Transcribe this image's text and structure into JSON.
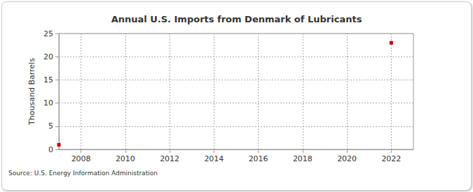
{
  "chart_data": {
    "type": "line",
    "title": "Annual U.S. Imports from Denmark of Lubricants",
    "y_label": "Thousand Barrels",
    "annotation": "Source: U.S. Energy Information Administration",
    "x": [
      2007,
      2008,
      2009,
      2010,
      2011,
      2012,
      2013,
      2014,
      2015,
      2016,
      2017,
      2018,
      2019,
      2020,
      2021,
      2022
    ],
    "values": [
      1,
      null,
      null,
      null,
      null,
      null,
      null,
      null,
      null,
      null,
      null,
      null,
      null,
      null,
      null,
      23
    ],
    "color": "#cc0000",
    "marker": "square",
    "xlim": [
      2007,
      2023
    ],
    "xticks": [
      2008,
      2010,
      2012,
      2014,
      2016,
      2018,
      2020,
      2022
    ],
    "ylim": [
      0,
      25
    ],
    "yticks": [
      0,
      5,
      10,
      15,
      20,
      25
    ],
    "grid": true
  }
}
